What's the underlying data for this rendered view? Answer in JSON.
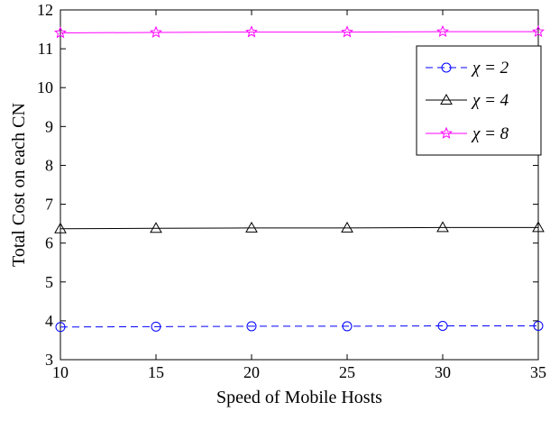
{
  "chart_data": {
    "type": "line",
    "xlabel": "Speed of Mobile Hosts",
    "ylabel": "Total Cost on each CN",
    "xlim": [
      10,
      35
    ],
    "ylim": [
      3,
      12
    ],
    "xticks": [
      10,
      15,
      20,
      25,
      30,
      35
    ],
    "yticks": [
      3,
      4,
      5,
      6,
      7,
      8,
      9,
      10,
      11,
      12
    ],
    "grid": false,
    "legend_position": "top-right",
    "x": [
      10,
      15,
      20,
      25,
      30,
      35
    ],
    "series": [
      {
        "name": "χ = 2",
        "color": "#0000ff",
        "marker": "circle",
        "dash": "dashed",
        "values": [
          3.84,
          3.85,
          3.86,
          3.86,
          3.87,
          3.87
        ]
      },
      {
        "name": "χ = 4",
        "color": "#000000",
        "marker": "triangle",
        "dash": "solid",
        "values": [
          6.37,
          6.38,
          6.39,
          6.39,
          6.4,
          6.4
        ]
      },
      {
        "name": "χ = 8",
        "color": "#ff00ff",
        "marker": "star",
        "dash": "solid",
        "values": [
          11.41,
          11.42,
          11.43,
          11.43,
          11.44,
          11.44
        ]
      }
    ]
  }
}
